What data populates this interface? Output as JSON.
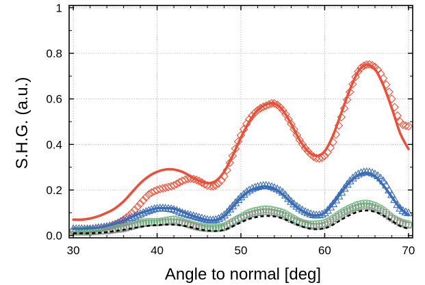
{
  "chart_data": {
    "type": "scatter",
    "title": "",
    "xlabel": "Angle to normal [deg]",
    "ylabel": "S.H.G. (a.u.)",
    "xlim": [
      29.5,
      70.5
    ],
    "ylim": [
      -0.01,
      1.01
    ],
    "xticks": [
      30,
      40,
      50,
      60,
      70
    ],
    "yticks": [
      0.0,
      0.2,
      0.4,
      0.6,
      0.8,
      1
    ],
    "xtick_labels": [
      "30",
      "40",
      "50",
      "60",
      "70"
    ],
    "ytick_labels": [
      "0.0",
      "0.2",
      "0.4",
      "0.6",
      "0.8",
      "1"
    ],
    "grid": true,
    "legend": "none",
    "colors": {
      "red": "#e8503a",
      "blue": "#3a6db5",
      "green": "#6bbf7a",
      "gray": "#8f8f8f",
      "black": "#000000"
    },
    "series": [
      {
        "marker": "diamond",
        "color": "red",
        "x": [
          30,
          31,
          32,
          33,
          34,
          35,
          36,
          37,
          38,
          39,
          40,
          41,
          42,
          43,
          44,
          45,
          46,
          47,
          48,
          49,
          50,
          51,
          52,
          53,
          54,
          55,
          56,
          57,
          58,
          59,
          60,
          61,
          62,
          63,
          64,
          65,
          66,
          67,
          68,
          69,
          70
        ],
        "y": [
          0.02,
          0.02,
          0.025,
          0.03,
          0.035,
          0.05,
          0.07,
          0.1,
          0.14,
          0.18,
          0.2,
          0.21,
          0.22,
          0.24,
          0.25,
          0.24,
          0.22,
          0.22,
          0.26,
          0.35,
          0.44,
          0.51,
          0.55,
          0.57,
          0.58,
          0.55,
          0.49,
          0.42,
          0.37,
          0.34,
          0.35,
          0.41,
          0.52,
          0.63,
          0.72,
          0.75,
          0.74,
          0.69,
          0.6,
          0.5,
          0.48
        ]
      },
      {
        "marker": "triangle",
        "color": "blue",
        "x": [
          30,
          31,
          32,
          33,
          34,
          35,
          36,
          37,
          38,
          39,
          40,
          41,
          42,
          43,
          44,
          45,
          46,
          47,
          48,
          49,
          50,
          51,
          52,
          53,
          54,
          55,
          56,
          57,
          58,
          59,
          60,
          61,
          62,
          63,
          64,
          65,
          66,
          67,
          68,
          69,
          70
        ],
        "y": [
          0.03,
          0.03,
          0.03,
          0.035,
          0.04,
          0.05,
          0.065,
          0.08,
          0.095,
          0.11,
          0.12,
          0.12,
          0.115,
          0.1,
          0.09,
          0.08,
          0.07,
          0.07,
          0.09,
          0.13,
          0.17,
          0.2,
          0.215,
          0.22,
          0.21,
          0.19,
          0.15,
          0.12,
          0.1,
          0.09,
          0.1,
          0.14,
          0.19,
          0.24,
          0.27,
          0.28,
          0.27,
          0.24,
          0.18,
          0.12,
          0.1
        ]
      },
      {
        "marker": "circle",
        "color": "green",
        "x": [
          30,
          31,
          32,
          33,
          34,
          35,
          36,
          37,
          38,
          39,
          40,
          41,
          42,
          43,
          44,
          45,
          46,
          47,
          48,
          49,
          50,
          51,
          52,
          53,
          54,
          55,
          56,
          57,
          58,
          59,
          60,
          61,
          62,
          63,
          64,
          65,
          66,
          67,
          68,
          69,
          70
        ],
        "y": [
          0.02,
          0.02,
          0.02,
          0.02,
          0.025,
          0.03,
          0.035,
          0.045,
          0.055,
          0.06,
          0.06,
          0.065,
          0.07,
          0.06,
          0.05,
          0.04,
          0.035,
          0.035,
          0.04,
          0.06,
          0.08,
          0.1,
          0.11,
          0.115,
          0.11,
          0.1,
          0.08,
          0.06,
          0.05,
          0.05,
          0.055,
          0.075,
          0.1,
          0.12,
          0.135,
          0.14,
          0.13,
          0.11,
          0.08,
          0.06,
          0.05
        ]
      },
      {
        "marker": "square",
        "color": "gray",
        "x": [
          30,
          31,
          32,
          33,
          34,
          35,
          36,
          37,
          38,
          39,
          40,
          41,
          42,
          43,
          44,
          45,
          46,
          47,
          48,
          49,
          50,
          51,
          52,
          53,
          54,
          55,
          56,
          57,
          58,
          59,
          60,
          61,
          62,
          63,
          64,
          65,
          66,
          67,
          68,
          69,
          70
        ],
        "y": [
          0.015,
          0.015,
          0.015,
          0.02,
          0.02,
          0.025,
          0.03,
          0.04,
          0.05,
          0.055,
          0.055,
          0.06,
          0.06,
          0.055,
          0.045,
          0.035,
          0.03,
          0.03,
          0.035,
          0.055,
          0.075,
          0.09,
          0.1,
          0.105,
          0.1,
          0.09,
          0.07,
          0.055,
          0.045,
          0.04,
          0.045,
          0.065,
          0.09,
          0.11,
          0.125,
          0.13,
          0.12,
          0.1,
          0.075,
          0.055,
          0.045
        ]
      }
    ],
    "lines": [
      {
        "style": "solid",
        "color": "red",
        "x": [
          30,
          31,
          32,
          33,
          34,
          35,
          36,
          37,
          38,
          39,
          40,
          41,
          42,
          43,
          44,
          45,
          46,
          47,
          48,
          49,
          50,
          51,
          52,
          53,
          54,
          55,
          56,
          57,
          58,
          59,
          60,
          61,
          62,
          63,
          64,
          65,
          66,
          67,
          68,
          69,
          70
        ],
        "y": [
          0.07,
          0.07,
          0.075,
          0.085,
          0.1,
          0.12,
          0.15,
          0.19,
          0.23,
          0.26,
          0.28,
          0.29,
          0.29,
          0.28,
          0.26,
          0.24,
          0.23,
          0.24,
          0.28,
          0.35,
          0.43,
          0.5,
          0.55,
          0.575,
          0.58,
          0.55,
          0.49,
          0.42,
          0.37,
          0.35,
          0.37,
          0.44,
          0.54,
          0.64,
          0.72,
          0.75,
          0.73,
          0.66,
          0.56,
          0.45,
          0.38
        ]
      },
      {
        "style": "solid",
        "color": "blue",
        "x": [
          30,
          31,
          32,
          33,
          34,
          35,
          36,
          37,
          38,
          39,
          40,
          41,
          42,
          43,
          44,
          45,
          46,
          47,
          48,
          49,
          50,
          51,
          52,
          53,
          54,
          55,
          56,
          57,
          58,
          59,
          60,
          61,
          62,
          63,
          64,
          65,
          66,
          67,
          68,
          69,
          70
        ],
        "y": [
          0.03,
          0.03,
          0.032,
          0.035,
          0.042,
          0.052,
          0.066,
          0.082,
          0.098,
          0.11,
          0.12,
          0.12,
          0.118,
          0.105,
          0.09,
          0.078,
          0.068,
          0.068,
          0.085,
          0.125,
          0.165,
          0.195,
          0.21,
          0.215,
          0.205,
          0.18,
          0.145,
          0.115,
          0.095,
          0.088,
          0.1,
          0.14,
          0.19,
          0.235,
          0.265,
          0.275,
          0.26,
          0.22,
          0.17,
          0.12,
          0.09
        ]
      },
      {
        "style": "dashed",
        "color": "black",
        "x": [
          30,
          31,
          32,
          33,
          34,
          35,
          36,
          37,
          38,
          39,
          40,
          41,
          42,
          43,
          44,
          45,
          46,
          47,
          48,
          49,
          50,
          51,
          52,
          53,
          54,
          55,
          56,
          57,
          58,
          59,
          60,
          61,
          62,
          63,
          64,
          65,
          66,
          67,
          68,
          69,
          70
        ],
        "y": [
          0.01,
          0.01,
          0.01,
          0.012,
          0.015,
          0.02,
          0.025,
          0.032,
          0.038,
          0.043,
          0.046,
          0.048,
          0.048,
          0.044,
          0.037,
          0.028,
          0.022,
          0.02,
          0.025,
          0.04,
          0.058,
          0.073,
          0.082,
          0.086,
          0.084,
          0.075,
          0.06,
          0.044,
          0.032,
          0.028,
          0.032,
          0.048,
          0.07,
          0.09,
          0.105,
          0.11,
          0.104,
          0.088,
          0.065,
          0.042,
          0.03
        ]
      }
    ]
  }
}
